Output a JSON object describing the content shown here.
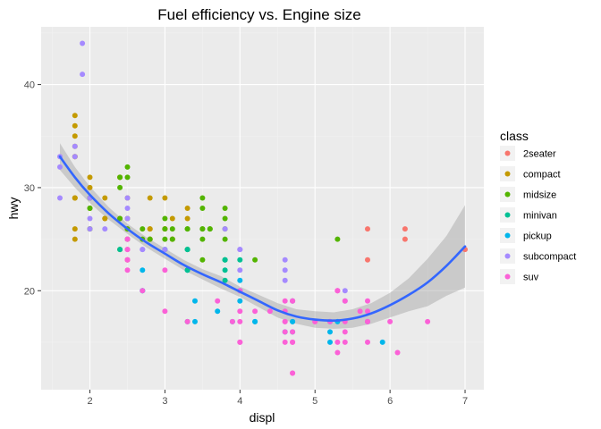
{
  "chart_data": {
    "type": "scatter",
    "title": "Fuel efficiency vs. Engine size",
    "xlabel": "displ",
    "ylabel": "hwy",
    "xlim": [
      1.35,
      7.25
    ],
    "ylim": [
      10.4,
      45.6
    ],
    "xticks": [
      2,
      3,
      4,
      5,
      6,
      7
    ],
    "yticks": [
      20,
      30,
      40
    ],
    "grid": true,
    "legend": {
      "title": "class",
      "position": "right"
    },
    "series": [
      {
        "name": "2seater",
        "color": "#F8766D",
        "points": [
          [
            5.7,
            26
          ],
          [
            5.7,
            23
          ],
          [
            6.2,
            26
          ],
          [
            6.2,
            25
          ],
          [
            7.0,
            24
          ]
        ]
      },
      {
        "name": "compact",
        "color": "#C49A00",
        "points": [
          [
            1.8,
            29
          ],
          [
            1.8,
            29
          ],
          [
            2.0,
            31
          ],
          [
            2.0,
            30
          ],
          [
            2.8,
            26
          ],
          [
            2.8,
            26
          ],
          [
            3.1,
            27
          ],
          [
            1.8,
            26
          ],
          [
            1.8,
            25
          ],
          [
            2.0,
            28
          ],
          [
            2.8,
            25
          ],
          [
            2.8,
            25
          ],
          [
            3.1,
            25
          ],
          [
            3.1,
            25
          ],
          [
            1.8,
            37
          ],
          [
            1.8,
            35
          ],
          [
            2.0,
            29
          ],
          [
            2.0,
            26
          ],
          [
            2.2,
            27
          ],
          [
            2.2,
            29
          ],
          [
            2.4,
            31
          ],
          [
            2.4,
            31
          ],
          [
            3.0,
            26
          ],
          [
            3.0,
            26
          ],
          [
            3.3,
            27
          ],
          [
            1.8,
            36
          ],
          [
            1.8,
            33
          ],
          [
            1.8,
            34
          ],
          [
            2.5,
            29
          ],
          [
            2.5,
            26
          ],
          [
            2.5,
            25
          ],
          [
            2.5,
            27
          ],
          [
            2.5,
            25
          ],
          [
            2.5,
            23
          ],
          [
            2.2,
            27
          ],
          [
            2.4,
            27
          ],
          [
            2.8,
            29
          ],
          [
            3.0,
            29
          ],
          [
            3.3,
            28
          ],
          [
            1.8,
            33
          ],
          [
            1.8,
            29
          ]
        ]
      },
      {
        "name": "midsize",
        "color": "#53B400",
        "points": [
          [
            2.4,
            27
          ],
          [
            2.4,
            30
          ],
          [
            2.4,
            31
          ],
          [
            2.4,
            24
          ],
          [
            2.5,
            32
          ],
          [
            2.5,
            31
          ],
          [
            2.5,
            26
          ],
          [
            3.5,
            29
          ],
          [
            3.5,
            28
          ],
          [
            3.5,
            26
          ],
          [
            3.5,
            25
          ],
          [
            3.5,
            23
          ],
          [
            3.3,
            24
          ],
          [
            3.1,
            26
          ],
          [
            3.1,
            25
          ],
          [
            2.0,
            28
          ],
          [
            2.0,
            29
          ],
          [
            2.0,
            29
          ],
          [
            2.0,
            26
          ],
          [
            2.0,
            28
          ],
          [
            2.8,
            25
          ],
          [
            3.0,
            26
          ],
          [
            3.8,
            28
          ],
          [
            3.8,
            26
          ],
          [
            3.8,
            27
          ],
          [
            4.2,
            23
          ],
          [
            3.6,
            26
          ],
          [
            3.6,
            26
          ],
          [
            3.3,
            26
          ],
          [
            3.3,
            26
          ],
          [
            3.0,
            27
          ],
          [
            3.0,
            25
          ],
          [
            3.5,
            26
          ],
          [
            3.8,
            25
          ],
          [
            3.8,
            23
          ],
          [
            5.3,
            25
          ],
          [
            2.7,
            25
          ],
          [
            2.7,
            26
          ]
        ]
      },
      {
        "name": "minivan",
        "color": "#00C094",
        "points": [
          [
            2.4,
            24
          ],
          [
            3.0,
            24
          ],
          [
            3.3,
            22
          ],
          [
            3.3,
            22
          ],
          [
            3.3,
            24
          ],
          [
            3.3,
            24
          ],
          [
            3.3,
            17
          ],
          [
            3.8,
            22
          ],
          [
            3.8,
            21
          ],
          [
            3.8,
            23
          ],
          [
            3.8,
            23
          ],
          [
            4.0,
            23
          ]
        ]
      },
      {
        "name": "pickup",
        "color": "#00B6EB",
        "points": [
          [
            2.7,
            20
          ],
          [
            2.7,
            20
          ],
          [
            2.7,
            22
          ],
          [
            3.4,
            17
          ],
          [
            3.4,
            19
          ],
          [
            3.7,
            18
          ],
          [
            3.9,
            17
          ],
          [
            4.0,
            20
          ],
          [
            4.2,
            17
          ],
          [
            4.2,
            17
          ],
          [
            4.6,
            16
          ],
          [
            4.7,
            17
          ],
          [
            4.7,
            16
          ],
          [
            4.7,
            17
          ],
          [
            5.2,
            15
          ],
          [
            5.2,
            16
          ],
          [
            5.7,
            17
          ],
          [
            5.9,
            15
          ],
          [
            4.0,
            19
          ],
          [
            4.0,
            21
          ],
          [
            4.7,
            19
          ],
          [
            5.2,
            17
          ],
          [
            5.3,
            17
          ]
        ]
      },
      {
        "name": "subcompact",
        "color": "#A58AFF",
        "points": [
          [
            1.6,
            33
          ],
          [
            1.6,
            32
          ],
          [
            1.6,
            29
          ],
          [
            1.9,
            44
          ],
          [
            1.9,
            41
          ],
          [
            2.0,
            29
          ],
          [
            2.0,
            26
          ],
          [
            2.0,
            27
          ],
          [
            2.2,
            26
          ],
          [
            2.5,
            29
          ],
          [
            2.5,
            28
          ],
          [
            2.7,
            24
          ],
          [
            2.7,
            24
          ],
          [
            3.0,
            24
          ],
          [
            3.8,
            26
          ],
          [
            4.0,
            24
          ],
          [
            4.0,
            24
          ],
          [
            4.0,
            22
          ],
          [
            4.6,
            23
          ],
          [
            4.6,
            22
          ],
          [
            4.6,
            21
          ],
          [
            5.4,
            20
          ],
          [
            5.4,
            19
          ],
          [
            1.8,
            34
          ],
          [
            1.8,
            33
          ],
          [
            2.5,
            25
          ],
          [
            2.5,
            27
          ]
        ]
      },
      {
        "name": "suv",
        "color": "#FB61D7",
        "points": [
          [
            5.3,
            20
          ],
          [
            5.3,
            15
          ],
          [
            5.3,
            20
          ],
          [
            5.7,
            17
          ],
          [
            6.0,
            17
          ],
          [
            5.7,
            19
          ],
          [
            6.5,
            17
          ],
          [
            2.5,
            23
          ],
          [
            2.5,
            24
          ],
          [
            2.5,
            22
          ],
          [
            3.0,
            22
          ],
          [
            4.0,
            15
          ],
          [
            4.0,
            18
          ],
          [
            4.0,
            17
          ],
          [
            4.6,
            19
          ],
          [
            4.6,
            18
          ],
          [
            4.7,
            12
          ],
          [
            4.7,
            16
          ],
          [
            4.7,
            12
          ],
          [
            5.7,
            17
          ],
          [
            6.1,
            14
          ],
          [
            4.7,
            19
          ],
          [
            5.4,
            17
          ],
          [
            5.4,
            19
          ],
          [
            4.4,
            18
          ],
          [
            3.7,
            19
          ],
          [
            5.0,
            17
          ],
          [
            5.3,
            14
          ],
          [
            5.6,
            18
          ],
          [
            5.4,
            15
          ],
          [
            4.7,
            19
          ],
          [
            5.4,
            16
          ],
          [
            5.3,
            20
          ],
          [
            4.2,
            18
          ],
          [
            4.6,
            15
          ],
          [
            4.6,
            17
          ],
          [
            4.7,
            15
          ],
          [
            5.7,
            15
          ],
          [
            5.7,
            18
          ],
          [
            5.0,
            17
          ],
          [
            5.2,
            17
          ],
          [
            3.3,
            17
          ],
          [
            3.9,
            17
          ],
          [
            4.0,
            15
          ],
          [
            2.7,
            20
          ],
          [
            4.0,
            20
          ],
          [
            4.7,
            15
          ],
          [
            4.6,
            16
          ],
          [
            4.6,
            17
          ],
          [
            2.5,
            25
          ],
          [
            2.5,
            24
          ],
          [
            2.5,
            23
          ],
          [
            3.0,
            18
          ]
        ]
      }
    ],
    "smooth": {
      "color": "#3366FF",
      "band_color": "#999999",
      "fit": [
        [
          1.6,
          33.0
        ],
        [
          1.8,
          31.0
        ],
        [
          2.0,
          29.3
        ],
        [
          2.25,
          27.5
        ],
        [
          2.5,
          26.0
        ],
        [
          2.75,
          24.7
        ],
        [
          3.0,
          23.6
        ],
        [
          3.25,
          22.5
        ],
        [
          3.5,
          21.6
        ],
        [
          3.75,
          20.8
        ],
        [
          4.0,
          19.9
        ],
        [
          4.25,
          19.0
        ],
        [
          4.5,
          18.1
        ],
        [
          4.75,
          17.5
        ],
        [
          5.0,
          17.2
        ],
        [
          5.25,
          17.1
        ],
        [
          5.5,
          17.3
        ],
        [
          5.75,
          17.8
        ],
        [
          6.0,
          18.6
        ],
        [
          6.25,
          19.6
        ],
        [
          6.5,
          20.8
        ],
        [
          6.75,
          22.4
        ],
        [
          7.0,
          24.3
        ]
      ],
      "lower": [
        [
          1.6,
          31.7
        ],
        [
          1.8,
          30.0
        ],
        [
          2.0,
          28.5
        ],
        [
          2.25,
          26.9
        ],
        [
          2.5,
          25.5
        ],
        [
          2.75,
          24.2
        ],
        [
          3.0,
          23.1
        ],
        [
          3.25,
          22.0
        ],
        [
          3.5,
          21.1
        ],
        [
          3.75,
          20.2
        ],
        [
          4.0,
          19.4
        ],
        [
          4.25,
          18.4
        ],
        [
          4.5,
          17.4
        ],
        [
          4.75,
          16.8
        ],
        [
          5.0,
          16.4
        ],
        [
          5.25,
          16.3
        ],
        [
          5.5,
          16.4
        ],
        [
          5.75,
          16.8
        ],
        [
          6.0,
          17.4
        ],
        [
          6.25,
          18.0
        ],
        [
          6.5,
          18.5
        ],
        [
          6.75,
          19.5
        ],
        [
          7.0,
          20.3
        ]
      ],
      "upper": [
        [
          1.6,
          34.3
        ],
        [
          1.8,
          32.0
        ],
        [
          2.0,
          30.1
        ],
        [
          2.25,
          28.1
        ],
        [
          2.5,
          26.5
        ],
        [
          2.75,
          25.2
        ],
        [
          3.0,
          24.1
        ],
        [
          3.25,
          23.0
        ],
        [
          3.5,
          22.1
        ],
        [
          3.75,
          21.4
        ],
        [
          4.0,
          20.4
        ],
        [
          4.25,
          19.6
        ],
        [
          4.5,
          18.8
        ],
        [
          4.75,
          18.2
        ],
        [
          5.0,
          18.0
        ],
        [
          5.25,
          17.9
        ],
        [
          5.5,
          18.2
        ],
        [
          5.75,
          18.8
        ],
        [
          6.0,
          19.8
        ],
        [
          6.25,
          21.2
        ],
        [
          6.5,
          23.1
        ],
        [
          6.75,
          25.3
        ],
        [
          7.0,
          28.3
        ]
      ]
    }
  }
}
